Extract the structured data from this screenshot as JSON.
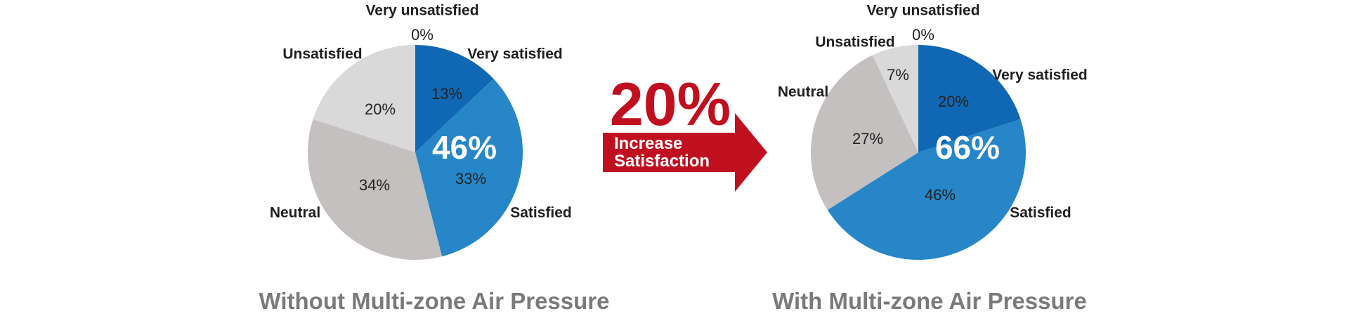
{
  "chart_data": [
    {
      "type": "pie",
      "title": "Without Multi-zone Air Pressure",
      "combined_satisfied": "46%",
      "slices": [
        {
          "label": "Very satisfied",
          "value": 13,
          "display": "13%",
          "color": "#1068b4"
        },
        {
          "label": "Satisfied",
          "value": 33,
          "display": "33%",
          "color": "#2686c8"
        },
        {
          "label": "Neutral",
          "value": 34,
          "display": "34%",
          "color": "#c4c0bf"
        },
        {
          "label": "Unsatisfied",
          "value": 20,
          "display": "20%",
          "color": "#d9d9d9"
        },
        {
          "label": "Very unsatisfied",
          "value": 0,
          "display": "0%",
          "color": "#e8e8e8"
        }
      ]
    },
    {
      "type": "pie",
      "title": "With Multi-zone Air Pressure",
      "combined_satisfied": "66%",
      "slices": [
        {
          "label": "Very satisfied",
          "value": 20,
          "display": "20%",
          "color": "#1068b4"
        },
        {
          "label": "Satisfied",
          "value": 46,
          "display": "46%",
          "color": "#2686c8"
        },
        {
          "label": "Neutral",
          "value": 27,
          "display": "27%",
          "color": "#c4c0bf"
        },
        {
          "label": "Unsatisfied",
          "value": 7,
          "display": "7%",
          "color": "#d9d9d9"
        },
        {
          "label": "Very unsatisfied",
          "value": 0,
          "display": "0%",
          "color": "#e8e8e8"
        }
      ]
    }
  ],
  "arrow": {
    "value": "20%",
    "line1": "Increase",
    "line2": "Satisfaction",
    "color": "#c0101f"
  }
}
